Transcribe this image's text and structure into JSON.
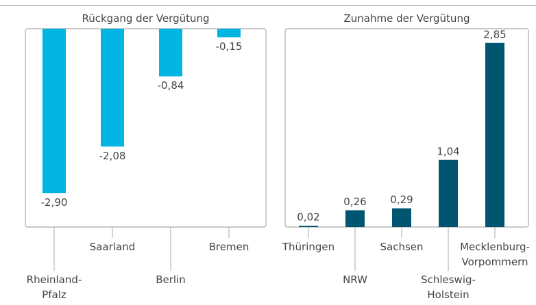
{
  "chart_data": [
    {
      "type": "bar",
      "title": "Rückgang der Vergütung",
      "categories": [
        "Rheinland-\nPfalz",
        "Saarland",
        "Berlin",
        "Bremen"
      ],
      "values": [
        -2.9,
        -2.08,
        -0.84,
        -0.15
      ],
      "value_labels": [
        "-2,90",
        "-2,08",
        "-0,84",
        "-0,15"
      ],
      "color": "#00b5e2",
      "ylim": [
        -3.5,
        0
      ]
    },
    {
      "type": "bar",
      "title": "Zunahme der Vergütung",
      "categories": [
        "Thüringen",
        "NRW",
        "Sachsen",
        "Schleswig-\nHolstein",
        "Mecklenburg-\nVorpommern"
      ],
      "values": [
        0.02,
        0.26,
        0.29,
        1.04,
        2.85
      ],
      "value_labels": [
        "0,02",
        "0,26",
        "0,29",
        "1,04",
        "2,85"
      ],
      "color": "#005670",
      "ylim": [
        0,
        3.07
      ]
    }
  ]
}
